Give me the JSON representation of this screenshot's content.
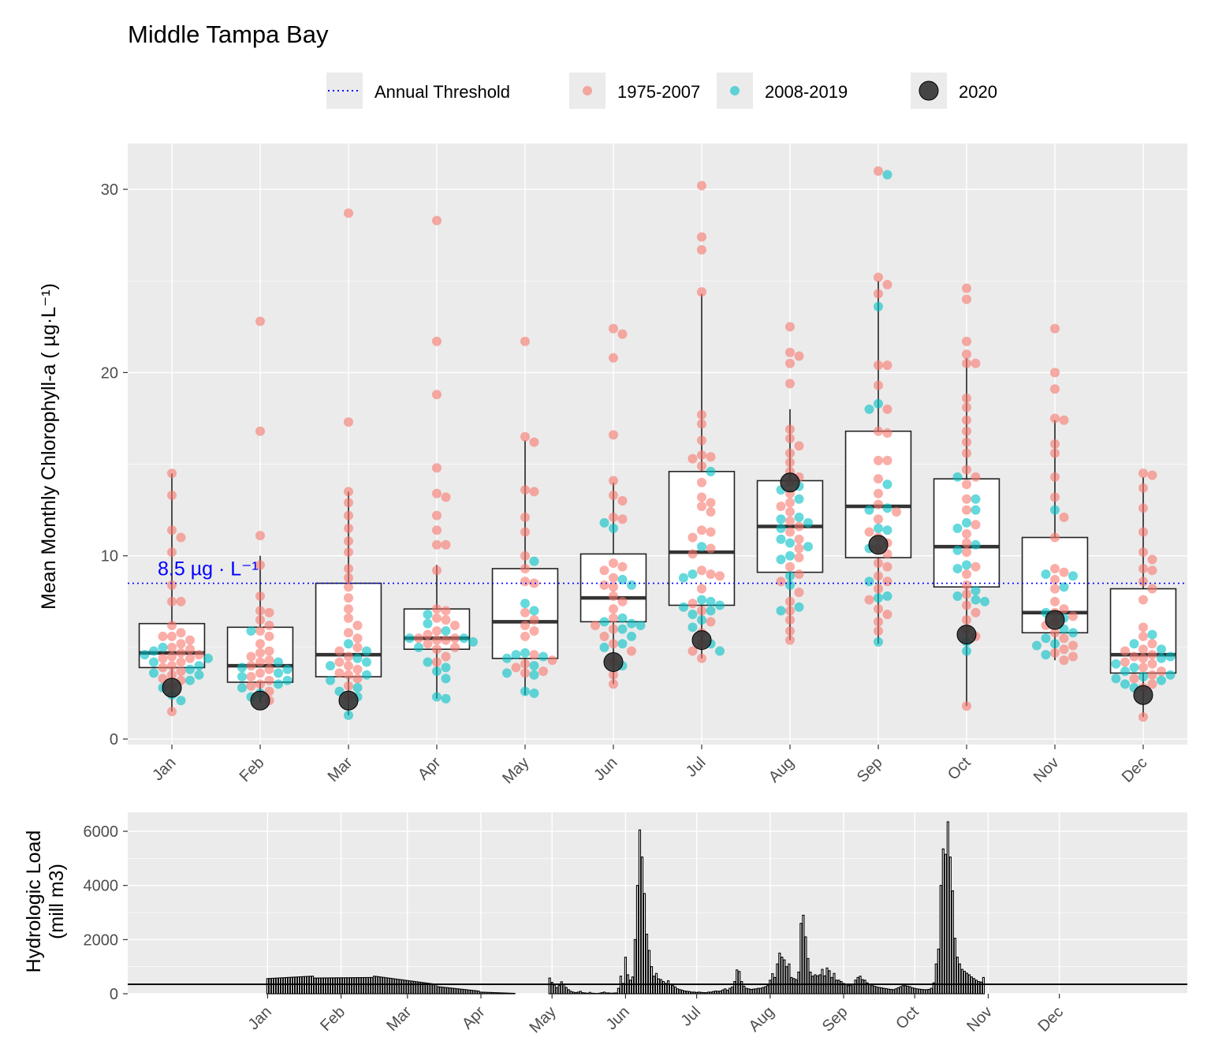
{
  "title": "Middle Tampa Bay",
  "legend": {
    "threshold_label": "Annual Threshold",
    "period1_label": "1975-2007",
    "period2_label": "2008-2019",
    "current_label": "2020"
  },
  "colors": {
    "period1": "#F8766D",
    "period2": "#00BFC4",
    "current": "#1a1a1a",
    "threshold": "#0000ff",
    "panel": "#ebebeb",
    "axis_text": "#4d4d4d"
  },
  "chart_data": [
    {
      "type": "box",
      "ylabel": "Mean Monthly Chlorophyll-a ( µg·L⁻¹)",
      "ylim": [
        -0.3,
        32.5
      ],
      "yticks": [
        0,
        10,
        20,
        30
      ],
      "categories": [
        "Jan",
        "Feb",
        "Mar",
        "Apr",
        "May",
        "Jun",
        "Jul",
        "Aug",
        "Sep",
        "Oct",
        "Nov",
        "Dec"
      ],
      "threshold": {
        "value": 8.5,
        "label": "8.5 µg · L⁻¹"
      },
      "boxes": [
        {
          "q1": 3.9,
          "median": 4.7,
          "q3": 6.3,
          "lo": 1.5,
          "hi": 14.5
        },
        {
          "q1": 3.1,
          "median": 4.0,
          "q3": 6.1,
          "lo": 2.0,
          "hi": 10.0
        },
        {
          "q1": 3.4,
          "median": 4.6,
          "q3": 8.5,
          "lo": 1.3,
          "hi": 13.5
        },
        {
          "q1": 4.9,
          "median": 5.5,
          "q3": 7.1,
          "lo": 2.2,
          "hi": 9.5
        },
        {
          "q1": 4.4,
          "median": 6.4,
          "q3": 9.3,
          "lo": 2.4,
          "hi": 16.3
        },
        {
          "q1": 6.4,
          "median": 7.7,
          "q3": 10.1,
          "lo": 3.0,
          "hi": 14.0
        },
        {
          "q1": 7.3,
          "median": 10.2,
          "q3": 14.6,
          "lo": 4.4,
          "hi": 24.3
        },
        {
          "q1": 9.1,
          "median": 11.6,
          "q3": 14.1,
          "lo": 5.4,
          "hi": 18.0
        },
        {
          "q1": 9.9,
          "median": 12.7,
          "q3": 16.8,
          "lo": 5.2,
          "hi": 25.0
        },
        {
          "q1": 8.3,
          "median": 10.5,
          "q3": 14.2,
          "lo": 1.8,
          "hi": 20.8
        },
        {
          "q1": 5.8,
          "median": 6.9,
          "q3": 11.0,
          "lo": 4.3,
          "hi": 17.4
        },
        {
          "q1": 3.6,
          "median": 4.6,
          "q3": 8.2,
          "lo": 1.2,
          "hi": 14.3
        }
      ],
      "points_1975_2007": [
        [
          14.5,
          13.3,
          11.4,
          11.0,
          10.2,
          8.4,
          7.5,
          7.5,
          6.2,
          5.8,
          5.6,
          5.6,
          5.4,
          5.2,
          5.0,
          4.9,
          4.7,
          4.6,
          4.5,
          4.4,
          4.4,
          4.2,
          4.0,
          3.9,
          3.7,
          3.5,
          3.3,
          3.2,
          2.9,
          1.5
        ],
        [
          22.8,
          16.8,
          11.1,
          9.5,
          7.8,
          7.0,
          6.9,
          6.5,
          6.2,
          5.9,
          5.6,
          5.2,
          4.8,
          4.7,
          4.5,
          4.3,
          4.2,
          4.0,
          3.8,
          3.6,
          3.4,
          3.2,
          3.0,
          2.9,
          2.6,
          2.1
        ],
        [
          28.7,
          17.3,
          13.5,
          12.9,
          12.2,
          11.5,
          10.8,
          10.2,
          9.3,
          8.8,
          8.3,
          7.7,
          7.1,
          6.6,
          6.2,
          5.8,
          5.5,
          5.0,
          4.8,
          4.5,
          4.2,
          4.0,
          3.8,
          3.6,
          3.5,
          3.3,
          2.9,
          2.3
        ],
        [
          28.3,
          21.7,
          18.8,
          14.8,
          13.4,
          13.2,
          12.2,
          11.4,
          10.6,
          10.6,
          9.2,
          7.1,
          7.0,
          6.6,
          6.5,
          6.2,
          5.9,
          5.7,
          5.5,
          5.5,
          5.4,
          5.4,
          5.2,
          5.0,
          4.9,
          4.5,
          4.2
        ],
        [
          21.7,
          16.5,
          16.2,
          13.6,
          13.5,
          12.1,
          11.3,
          10.0,
          9.3,
          8.6,
          8.5,
          6.9,
          6.5,
          6.2,
          5.9,
          5.6,
          4.6,
          4.3,
          4.1,
          3.9,
          3.7,
          3.6
        ],
        [
          22.4,
          22.1,
          20.8,
          16.6,
          14.1,
          13.3,
          13.0,
          12.1,
          12.0,
          9.6,
          9.4,
          9.2,
          8.8,
          8.4,
          8.3,
          7.8,
          7.5,
          7.1,
          6.6,
          6.2,
          6.0,
          5.6,
          5.2,
          4.8,
          4.2,
          3.5,
          3.0
        ],
        [
          30.2,
          27.4,
          26.7,
          24.4,
          17.7,
          17.2,
          16.3,
          15.5,
          15.4,
          15.3,
          14.9,
          14.0,
          13.2,
          12.9,
          12.7,
          12.4,
          11.4,
          11.3,
          11.0,
          10.4,
          10.1,
          9.2,
          9.0,
          8.9,
          8.2,
          7.4,
          7.0,
          6.4,
          5.8,
          5.2,
          4.8,
          4.4
        ],
        [
          22.5,
          21.1,
          20.9,
          20.5,
          19.4,
          16.9,
          16.4,
          16.0,
          15.6,
          15.1,
          14.6,
          14.3,
          14.0,
          13.4,
          12.9,
          12.7,
          12.4,
          11.9,
          11.6,
          11.3,
          10.9,
          10.4,
          9.9,
          9.4,
          9.0,
          8.6,
          8.0,
          7.5,
          7.0,
          6.5,
          5.9,
          5.4
        ],
        [
          31.0,
          25.2,
          24.8,
          24.3,
          20.4,
          20.4,
          19.3,
          18.0,
          16.8,
          16.7,
          15.2,
          15.2,
          14.2,
          13.4,
          12.8,
          12.4,
          12.0,
          11.3,
          11.0,
          10.7,
          10.4,
          10.1,
          9.6,
          9.4,
          8.9,
          8.6,
          8.2,
          7.6,
          7.1,
          6.8,
          6.4,
          5.9
        ],
        [
          24.6,
          24.0,
          21.7,
          21.0,
          20.5,
          20.5,
          18.6,
          18.1,
          17.4,
          16.8,
          16.2,
          15.6,
          14.7,
          14.3,
          13.9,
          13.1,
          12.5,
          11.7,
          11.2,
          10.7,
          10.2,
          9.4,
          9.0,
          8.4,
          7.9,
          7.3,
          6.9,
          6.5,
          6.0,
          5.6,
          1.8
        ],
        [
          22.4,
          20.0,
          19.1,
          17.5,
          17.4,
          16.1,
          15.6,
          14.3,
          13.2,
          12.1,
          11.0,
          9.3,
          9.1,
          8.7,
          8.2,
          7.5,
          7.1,
          6.9,
          6.7,
          6.4,
          6.2,
          5.8,
          5.5,
          5.1,
          4.9,
          4.7,
          4.5,
          4.3
        ],
        [
          14.5,
          14.4,
          13.7,
          12.6,
          11.3,
          10.2,
          9.8,
          9.3,
          9.2,
          8.6,
          8.2,
          7.6,
          6.1,
          5.6,
          5.2,
          4.9,
          4.8,
          4.6,
          4.5,
          4.4,
          4.2,
          4.1,
          3.9,
          3.7,
          3.5,
          3.3,
          3.0,
          2.8,
          1.2
        ]
      ],
      "points_2008_2019": [
        [
          5.0,
          4.8,
          4.6,
          4.4,
          4.2,
          4.0,
          3.8,
          3.6,
          3.5,
          3.2,
          2.8,
          2.4,
          2.1
        ],
        [
          5.9,
          4.2,
          3.9,
          3.8,
          3.6,
          3.4,
          3.2,
          3.0,
          2.8,
          2.5,
          2.3
        ],
        [
          5.2,
          4.8,
          4.4,
          4.2,
          4.0,
          3.5,
          3.2,
          2.8,
          2.6,
          2.3,
          1.3
        ],
        [
          6.8,
          6.3,
          5.9,
          5.5,
          5.5,
          5.3,
          5.0,
          4.2,
          3.9,
          3.7,
          3.3,
          2.3,
          2.2
        ],
        [
          9.7,
          7.4,
          7.0,
          4.7,
          4.6,
          4.5,
          4.4,
          4.0,
          3.6,
          3.5,
          2.6,
          2.5
        ],
        [
          11.8,
          11.5,
          8.7,
          8.4,
          6.6,
          6.4,
          6.3,
          6.2,
          6.0,
          5.6,
          5.2,
          5.0,
          4.0
        ],
        [
          14.6,
          10.5,
          9.0,
          8.8,
          7.6,
          7.5,
          7.3,
          7.2,
          7.0,
          6.8,
          6.5,
          6.1,
          5.2,
          4.8
        ],
        [
          13.8,
          13.6,
          13.1,
          12.1,
          12.0,
          11.8,
          11.5,
          10.9,
          10.7,
          10.5,
          10.0,
          9.8,
          8.9,
          8.4,
          7.2,
          7.0
        ],
        [
          30.8,
          23.6,
          18.3,
          18.0,
          13.9,
          12.6,
          12.5,
          11.5,
          11.4,
          10.4,
          8.6,
          7.8,
          7.7,
          5.3
        ],
        [
          14.3,
          13.1,
          12.5,
          11.8,
          11.5,
          10.6,
          10.3,
          9.5,
          9.3,
          8.1,
          7.8,
          7.6,
          7.5,
          5.3,
          4.8
        ],
        [
          12.5,
          9.0,
          8.9,
          8.3,
          6.9,
          6.6,
          6.0,
          5.8,
          5.5,
          5.2,
          5.1,
          4.6
        ],
        [
          5.7,
          5.2,
          4.9,
          4.5,
          4.4,
          4.1,
          3.9,
          3.7,
          3.5,
          3.4,
          3.3,
          3.2,
          3.0,
          2.8
        ]
      ],
      "points_2020": [
        2.8,
        2.1,
        2.1,
        null,
        null,
        4.2,
        5.4,
        14.0,
        10.6,
        5.7,
        6.5,
        2.4
      ]
    },
    {
      "type": "bar",
      "ylabel": "Hydrologic Load (mill m3)",
      "ylabel_lines": [
        "Hydrologic Load",
        "(mill m3)"
      ],
      "ylim": [
        0,
        6700
      ],
      "yticks": [
        0,
        2000,
        4000,
        6000
      ],
      "x_unit": "day_of_year",
      "xlim": [
        -58,
        389
      ],
      "month_labels": [
        "Jan",
        "Feb",
        "Mar",
        "Apr",
        "May",
        "Jun",
        "Jul",
        "Aug",
        "Sep",
        "Oct",
        "Nov",
        "Dec"
      ],
      "month_ticks": [
        1,
        32,
        60,
        91,
        121,
        152,
        182,
        213,
        244,
        274,
        305,
        335
      ],
      "series": [
        {
          "start": 1,
          "end": 20,
          "v0": 560,
          "v1": 650
        },
        {
          "start": 21,
          "end": 45,
          "v0": 580,
          "v1": 600
        },
        {
          "start": 46,
          "end": 72,
          "v0": 650,
          "v1": 350
        },
        {
          "start": 73,
          "end": 90,
          "v0": 260,
          "v1": 100
        },
        {
          "start": 91,
          "end": 105,
          "v0": 60,
          "v1": 15
        },
        {
          "start": 106,
          "end": 119,
          "v0": 0,
          "v1": 0
        },
        {
          "start": 120,
          "end": 137,
          "pattern": [
            580,
            420,
            320,
            230,
            300,
            440,
            360,
            230,
            150,
            90,
            60,
            40,
            60,
            90,
            40,
            30,
            20,
            50
          ]
        },
        {
          "start": 138,
          "end": 152,
          "pattern": [
            20,
            15,
            10,
            20,
            40,
            60,
            30,
            30,
            20,
            25,
            30,
            200,
            650,
            380,
            1350
          ]
        },
        {
          "start": 153,
          "end": 169,
          "pattern": [
            700,
            500,
            620,
            2000,
            4000,
            6050,
            5050,
            3700,
            2200,
            1600,
            1000,
            650,
            750,
            550,
            520,
            450,
            380
          ]
        },
        {
          "start": 170,
          "end": 184,
          "pattern": [
            480,
            350,
            300,
            250,
            180,
            150,
            130,
            100,
            90,
            80,
            60,
            60,
            50,
            60,
            50
          ]
        },
        {
          "start": 185,
          "end": 210,
          "pattern": [
            40,
            40,
            60,
            60,
            80,
            100,
            90,
            100,
            140,
            180,
            130,
            200,
            250,
            450,
            880,
            820,
            450,
            280,
            200,
            180,
            160,
            170,
            180,
            200,
            200,
            230
          ]
        },
        {
          "start": 211,
          "end": 227,
          "pattern": [
            260,
            300,
            500,
            740,
            600,
            1100,
            1500,
            1350,
            1250,
            1000,
            1100,
            600,
            560,
            520,
            800,
            2600,
            2900
          ]
        },
        {
          "start": 228,
          "end": 250,
          "pattern": [
            2100,
            1300,
            800,
            650,
            700,
            660,
            700,
            900,
            660,
            950,
            850,
            600,
            750,
            500,
            500,
            450,
            380,
            350,
            300,
            320,
            350,
            500,
            600
          ]
        },
        {
          "start": 251,
          "end": 282,
          "pattern": [
            650,
            520,
            500,
            400,
            350,
            300,
            280,
            250,
            230,
            220,
            200,
            190,
            170,
            160,
            150,
            180,
            220,
            260,
            300,
            300,
            280,
            260,
            220,
            200,
            180,
            170,
            160,
            150,
            150,
            160,
            200,
            400
          ]
        },
        {
          "start": 283,
          "end": 300,
          "pattern": [
            1100,
            1650,
            4000,
            5350,
            5150,
            6350,
            5050,
            3800,
            2050,
            1350,
            1100,
            900,
            830,
            760,
            700,
            620,
            560,
            500
          ]
        },
        {
          "start": 301,
          "end": 303,
          "pattern": [
            450,
            430,
            600
          ]
        }
      ]
    }
  ],
  "chart_data_hydro_axis_labels": [
    "Jan",
    "Feb",
    "Mar",
    "Apr",
    "May",
    "Jun",
    "Jul",
    "Aug",
    "Sep",
    "Oct",
    "Nov",
    "Dec"
  ]
}
